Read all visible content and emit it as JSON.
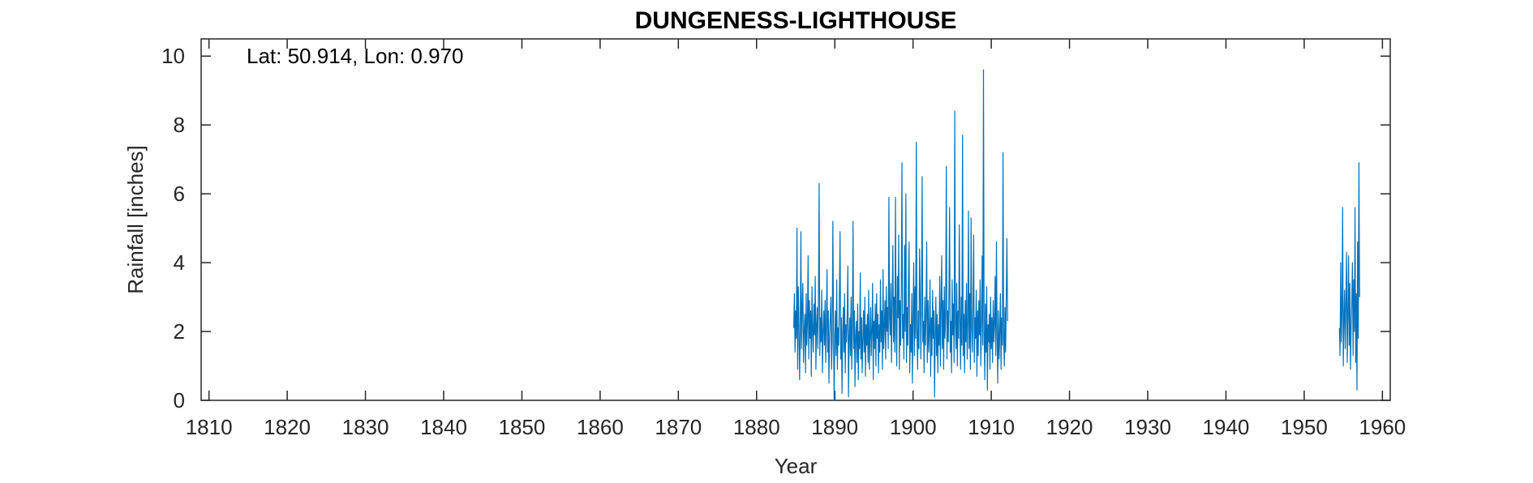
{
  "chart_data": {
    "type": "line",
    "title": "DUNGENESS-LIGHTHOUSE",
    "annotation": "Lat: 50.914, Lon: 0.970",
    "xlabel": "Year",
    "ylabel": "Rainfall [inches]",
    "xlim": [
      1809,
      1961
    ],
    "ylim": [
      0,
      10.5
    ],
    "xticks": [
      1810,
      1820,
      1830,
      1840,
      1850,
      1860,
      1870,
      1880,
      1890,
      1900,
      1910,
      1920,
      1930,
      1940,
      1950,
      1960
    ],
    "yticks": [
      0,
      2,
      4,
      6,
      8,
      10
    ],
    "grid": false,
    "line_color": "#0072BD",
    "series": [
      {
        "segments": [
          {
            "start": 1884.75,
            "step": 0.08333,
            "values": [
              2.1,
              3.1,
              1.4,
              2.6,
              1.8,
              5.0,
              0.9,
              3.3,
              2.2,
              0.6,
              1.9,
              4.9,
              1.5,
              2.7,
              3.4,
              1.1,
              2.0,
              2.5,
              0.8,
              3.1,
              1.6,
              2.3,
              4.2,
              1.2,
              2.9,
              1.8,
              2.6,
              0.7,
              3.3,
              2.0,
              1.4,
              2.8,
              1.9,
              3.6,
              0.9,
              2.2,
              2.7,
              1.5,
              3.0,
              6.3,
              1.3,
              2.4,
              1.7,
              3.2,
              0.8,
              2.0,
              2.6,
              1.6,
              2.9,
              1.1,
              2.2,
              3.8,
              1.4,
              2.6,
              0.5,
              1.9,
              2.4,
              3.0,
              0.9,
              1.7,
              5.2,
              2.2,
              0.0,
              1.8,
              2.6,
              1.3,
              3.5,
              0.9,
              2.1,
              1.6,
              2.8,
              4.9,
              1.2,
              2.4,
              0.2,
              1.9,
              2.7,
              1.4,
              3.1,
              0.8,
              2.2,
              1.7,
              2.5,
              3.9,
              0.1,
              1.8,
              2.4,
              1.3,
              3.0,
              0.9,
              2.1,
              5.2,
              1.5,
              2.6,
              0.4,
              1.9,
              2.3,
              1.1,
              2.8,
              0.6,
              2.0,
              1.5,
              3.7,
              1.2,
              2.4,
              0.8,
              1.8,
              2.6,
              1.4,
              3.0,
              0.7,
              2.2,
              1.6,
              2.5,
              1.1,
              3.2,
              0.9,
              1.9,
              2.7,
              1.3,
              2.0,
              3.4,
              0.6,
              2.3,
              1.5,
              2.8,
              1.0,
              3.1,
              1.8,
              2.5,
              0.8,
              2.2,
              1.4,
              3.5,
              1.7,
              2.6,
              0.9,
              3.8,
              1.5,
              2.1,
              2.9,
              1.2,
              3.3,
              2.0,
              2.7,
              1.5,
              5.9,
              2.4,
              1.9,
              3.4,
              1.1,
              2.8,
              4.5,
              1.7,
              3.0,
              1.4,
              5.9,
              2.2,
              1.0,
              3.6,
              2.4,
              4.8,
              0.9,
              2.9,
              1.6,
              3.2,
              6.9,
              1.8,
              2.5,
              1.2,
              4.5,
              2.0,
              6.0,
              1.1,
              2.7,
              1.6,
              3.4,
              4.6,
              0.8,
              2.2,
              1.4,
              3.1,
              0.5,
              2.4,
              4.0,
              1.3,
              3.3,
              1.8,
              7.5,
              2.1,
              0.9,
              2.6,
              1.5,
              4.4,
              3.1,
              1.2,
              2.8,
              6.5,
              1.7,
              2.3,
              0.8,
              3.0,
              1.6,
              2.5,
              4.6,
              1.1,
              2.9,
              1.4,
              2.0,
              3.5,
              0.7,
              2.4,
              1.3,
              3.2,
              1.8,
              2.6,
              0.1,
              1.9,
              3.0,
              1.3,
              2.5,
              0.8,
              2.2,
              1.6,
              3.6,
              1.0,
              2.7,
              4.2,
              1.5,
              2.9,
              0.9,
              3.3,
              1.8,
              2.4,
              6.8,
              1.2,
              2.6,
              1.7,
              3.1,
              5.6,
              1.4,
              2.3,
              0.8,
              3.5,
              1.9,
              2.8,
              1.1,
              8.4,
              2.2,
              1.5,
              3.4,
              1.0,
              2.6,
              1.8,
              5.1,
              2.4,
              0.9,
              3.0,
              1.6,
              7.7,
              1.3,
              2.5,
              0.8,
              2.9,
              1.7,
              3.4,
              1.2,
              2.2,
              5.5,
              1.5,
              3.1,
              0.9,
              5.3,
              2.1,
              1.4,
              2.7,
              4.8,
              1.1,
              2.4,
              1.8,
              3.2,
              0.7,
              2.6,
              1.3,
              2.9,
              1.9,
              3.5,
              1.0,
              2.3,
              4.2,
              1.6,
              9.6,
              2.0,
              0.6,
              2.8,
              1.4,
              3.3,
              0.3,
              2.2,
              1.7,
              2.5,
              0.9,
              3.0,
              1.5,
              2.4,
              1.1,
              2.9,
              1.7,
              2.2,
              3.6,
              1.3,
              4.6,
              1.9,
              0.5,
              2.6,
              1.2,
              2.0,
              3.1,
              0.9,
              2.4,
              1.6,
              7.2,
              1.8,
              1.0,
              2.7,
              1.4,
              3.0,
              4.7,
              2.3
            ]
          },
          {
            "start": 1954.5,
            "step": 0.08333,
            "values": [
              2.1,
              1.3,
              4.0,
              1.7,
              2.6,
              5.6,
              1.0,
              2.3,
              3.2,
              1.5,
              2.8,
              4.3,
              1.1,
              2.5,
              4.2,
              1.6,
              3.4,
              0.9,
              2.2,
              2.9,
              4.0,
              1.3,
              3.5,
              2.0,
              5.6,
              1.1,
              3.1,
              0.3,
              4.6,
              1.8,
              6.9,
              3.0
            ]
          }
        ]
      }
    ]
  }
}
